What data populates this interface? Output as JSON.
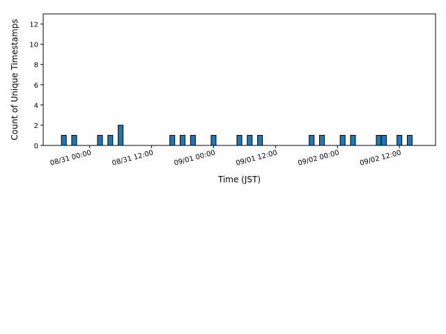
{
  "chart_data": {
    "type": "bar",
    "title": "",
    "xlabel": "Time (JST)",
    "ylabel": "Count of Unique Timestamps",
    "ylim": [
      0,
      13
    ],
    "xlim": [
      "2024-08-30 15:00",
      "2024-09-02 19:00"
    ],
    "bar_color": "#1f77b4",
    "bar_edge_color": "#000000",
    "grid": false,
    "y_ticks": [
      0,
      2,
      4,
      6,
      8,
      10,
      12
    ],
    "x_ticks": [
      {
        "t": "2024-08-31 00:00",
        "label": "08/31 00:00"
      },
      {
        "t": "2024-08-31 12:00",
        "label": "08/31 12:00"
      },
      {
        "t": "2024-09-01 00:00",
        "label": "09/01 00:00"
      },
      {
        "t": "2024-09-01 12:00",
        "label": "09/01 12:00"
      },
      {
        "t": "2024-09-02 00:00",
        "label": "09/02 00:00"
      },
      {
        "t": "2024-09-02 12:00",
        "label": "09/02 12:00"
      }
    ],
    "bin_width_hours": 1,
    "bars": [
      {
        "t": "2024-08-30 19:00",
        "value": 1
      },
      {
        "t": "2024-08-30 21:00",
        "value": 1
      },
      {
        "t": "2024-08-31 02:00",
        "value": 1
      },
      {
        "t": "2024-08-31 04:00",
        "value": 1
      },
      {
        "t": "2024-08-31 06:00",
        "value": 2
      },
      {
        "t": "2024-08-31 16:00",
        "value": 1
      },
      {
        "t": "2024-08-31 18:00",
        "value": 1
      },
      {
        "t": "2024-08-31 20:00",
        "value": 1
      },
      {
        "t": "2024-09-01 00:00",
        "value": 1
      },
      {
        "t": "2024-09-01 05:00",
        "value": 1
      },
      {
        "t": "2024-09-01 07:00",
        "value": 1
      },
      {
        "t": "2024-09-01 09:00",
        "value": 1
      },
      {
        "t": "2024-09-01 19:00",
        "value": 1
      },
      {
        "t": "2024-09-01 21:00",
        "value": 1
      },
      {
        "t": "2024-09-02 01:00",
        "value": 1
      },
      {
        "t": "2024-09-02 03:00",
        "value": 1
      },
      {
        "t": "2024-09-02 08:00",
        "value": 1
      },
      {
        "t": "2024-09-02 09:00",
        "value": 1
      },
      {
        "t": "2024-09-02 12:00",
        "value": 1
      },
      {
        "t": "2024-09-02 14:00",
        "value": 1
      }
    ]
  }
}
